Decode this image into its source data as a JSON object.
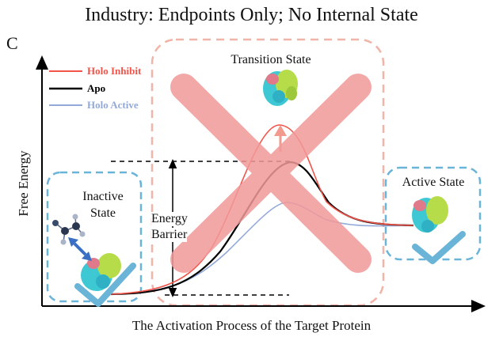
{
  "figure": {
    "title": "Industry: Endpoints Only; No Internal State",
    "panel_label": "C",
    "x_axis_label": "The Activation Process of the Target Protein",
    "y_axis_label": "Free Energy"
  },
  "legend": [
    {
      "label": "Holo Inhibit",
      "color": "#f2544a"
    },
    {
      "label": "Apo",
      "color": "#000000"
    },
    {
      "label": "Holo Active",
      "color": "#93a9d8"
    }
  ],
  "states": {
    "inactive": {
      "line1": "Inactive",
      "line2": "State",
      "mark": "check"
    },
    "transition": {
      "label": "Transition State",
      "mark": "cross"
    },
    "active": {
      "label": "Active State",
      "mark": "check"
    }
  },
  "barrier": {
    "line1": "Energy",
    "line2": "Barrier"
  },
  "colors": {
    "box_blue": "#6ab4d8",
    "box_pink": "#f0b4a8",
    "cross": "#f29a9a",
    "check": "#6ab4d8",
    "arrow_up": "#f29a8e",
    "double_arrow": "#3a6fc4",
    "protein_cyan": "#3ec8d4",
    "protein_green": "#b6dc4a",
    "protein_pink": "#e07a8a"
  }
}
